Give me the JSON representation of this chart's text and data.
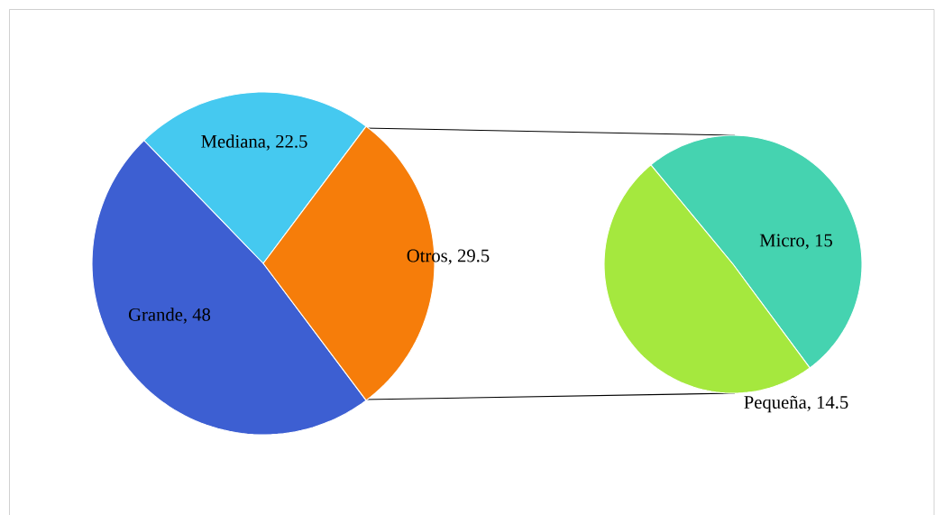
{
  "chart_data": [
    {
      "type": "pie",
      "categories": [
        "Grande",
        "Mediana",
        "Otros"
      ],
      "values": [
        48,
        22.5,
        29.5
      ],
      "colors": [
        "#3d5fd2",
        "#45c9f0",
        "#f67d0a"
      ],
      "value_labels": [
        ", 48",
        ", 22.5",
        ", 29.5"
      ]
    },
    {
      "type": "pie",
      "categories": [
        "Micro",
        "Pequeña"
      ],
      "values": [
        15,
        14.5
      ],
      "colors": [
        "#45d3b0",
        "#a5e83e"
      ],
      "value_labels": [
        ", 15",
        ", 14.5"
      ]
    }
  ]
}
